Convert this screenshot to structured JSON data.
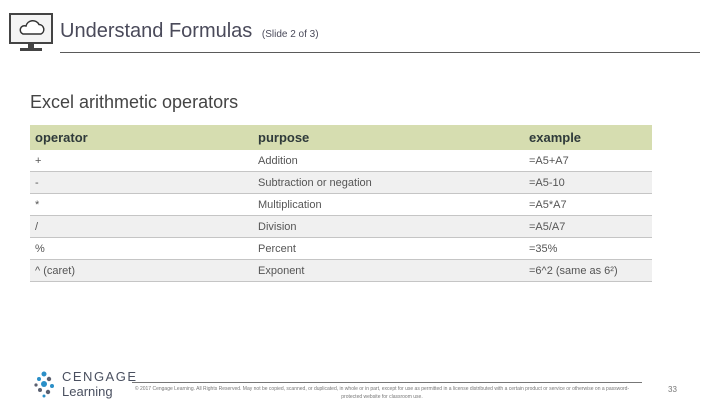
{
  "header": {
    "title": "Understand Formulas",
    "subtitle": "(Slide 2 of 3)"
  },
  "section_title": "Excel arithmetic operators",
  "table": {
    "columns": [
      "operator",
      "purpose",
      "example"
    ],
    "rows": [
      {
        "operator": "+",
        "purpose": "Addition",
        "example": "=A5+A7"
      },
      {
        "operator": "-",
        "purpose": "Subtraction or negation",
        "example": "=A5-10"
      },
      {
        "operator": "*",
        "purpose": "Multiplication",
        "example": "=A5*A7"
      },
      {
        "operator": "/",
        "purpose": "Division",
        "example": "=A5/A7"
      },
      {
        "operator": "%",
        "purpose": "Percent",
        "example": "=35%"
      },
      {
        "operator": "^ (caret)",
        "purpose": "Exponent",
        "example": "=6^2 (same as 6²)"
      }
    ]
  },
  "footer": {
    "logo_line1": "CENGAGE",
    "logo_line2": "Learning",
    "copyright": "© 2017 Cengage Learning. All Rights Reserved. May not be copied, scanned, or duplicated, in whole or in part, except for use as permitted in a license distributed with a certain product or service or otherwise on a password-protected website for classroom use.",
    "page_number": "33"
  },
  "colors": {
    "table_header_bg": "#d6ddb0",
    "alt_row_bg": "#f0f0f0",
    "title_color": "#4a4a5a"
  },
  "icons": [
    "monitor-cloud-icon",
    "cengage-logo-icon"
  ]
}
